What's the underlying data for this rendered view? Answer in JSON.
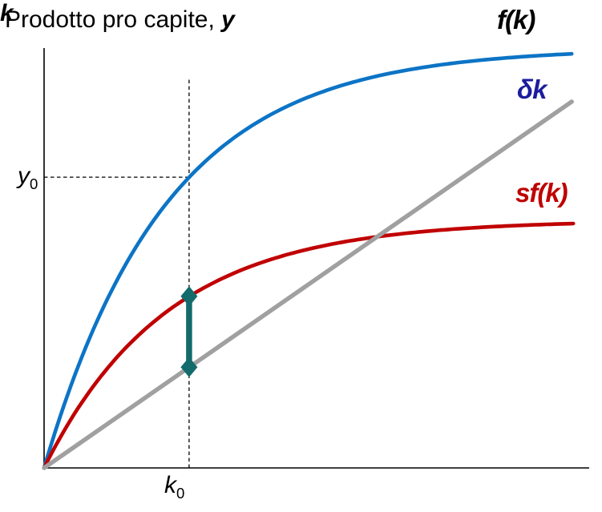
{
  "title": {
    "prefix": "Prodotto pro capite, ",
    "emph": "y"
  },
  "chart_data": {
    "type": "line",
    "title": "Prodotto pro capite, y",
    "xlabel": "k",
    "ylabel": "Prodotto pro capite, y",
    "xlim": [
      0,
      10.3
    ],
    "ylim": [
      0,
      8
    ],
    "grid": false,
    "legend_position": "labels-on-chart",
    "axis_color": "#000000",
    "guide_color": "#000000",
    "series": [
      {
        "name": "production-function",
        "label": "f(k)",
        "color": "#0C74C6",
        "label_color": "#000000",
        "model": "saturating",
        "A": 8.0,
        "a": 0.43,
        "k_end": 9.97
      },
      {
        "name": "saving-function",
        "label": "sf(k)",
        "color": "#C00000",
        "label_color": "#C00000",
        "model": "saturating",
        "A": 4.72,
        "a": 0.43,
        "k_end": 10.0
      },
      {
        "name": "depreciation-line",
        "label": "δk",
        "color": "#A0A0A0",
        "label_color": "#1C1C9E",
        "model": "linear",
        "slope": 0.7,
        "k_end": 9.97
      }
    ],
    "reference_point": {
      "k0": 2.74,
      "y0": 5.54
    },
    "guides": {
      "vertical_at_k": 2.74,
      "vertical_top_y": 7.44,
      "horizontal_at_y": 5.54,
      "dash": "4.5 3.5"
    },
    "gap_arrow": {
      "at_k": 2.74,
      "y_from": 1.92,
      "y_to": 3.27,
      "color": "#136B6C"
    }
  },
  "labels": {
    "y0": {
      "base": "y",
      "sub": "0"
    },
    "k0": {
      "base": "k",
      "sub": "0"
    }
  }
}
